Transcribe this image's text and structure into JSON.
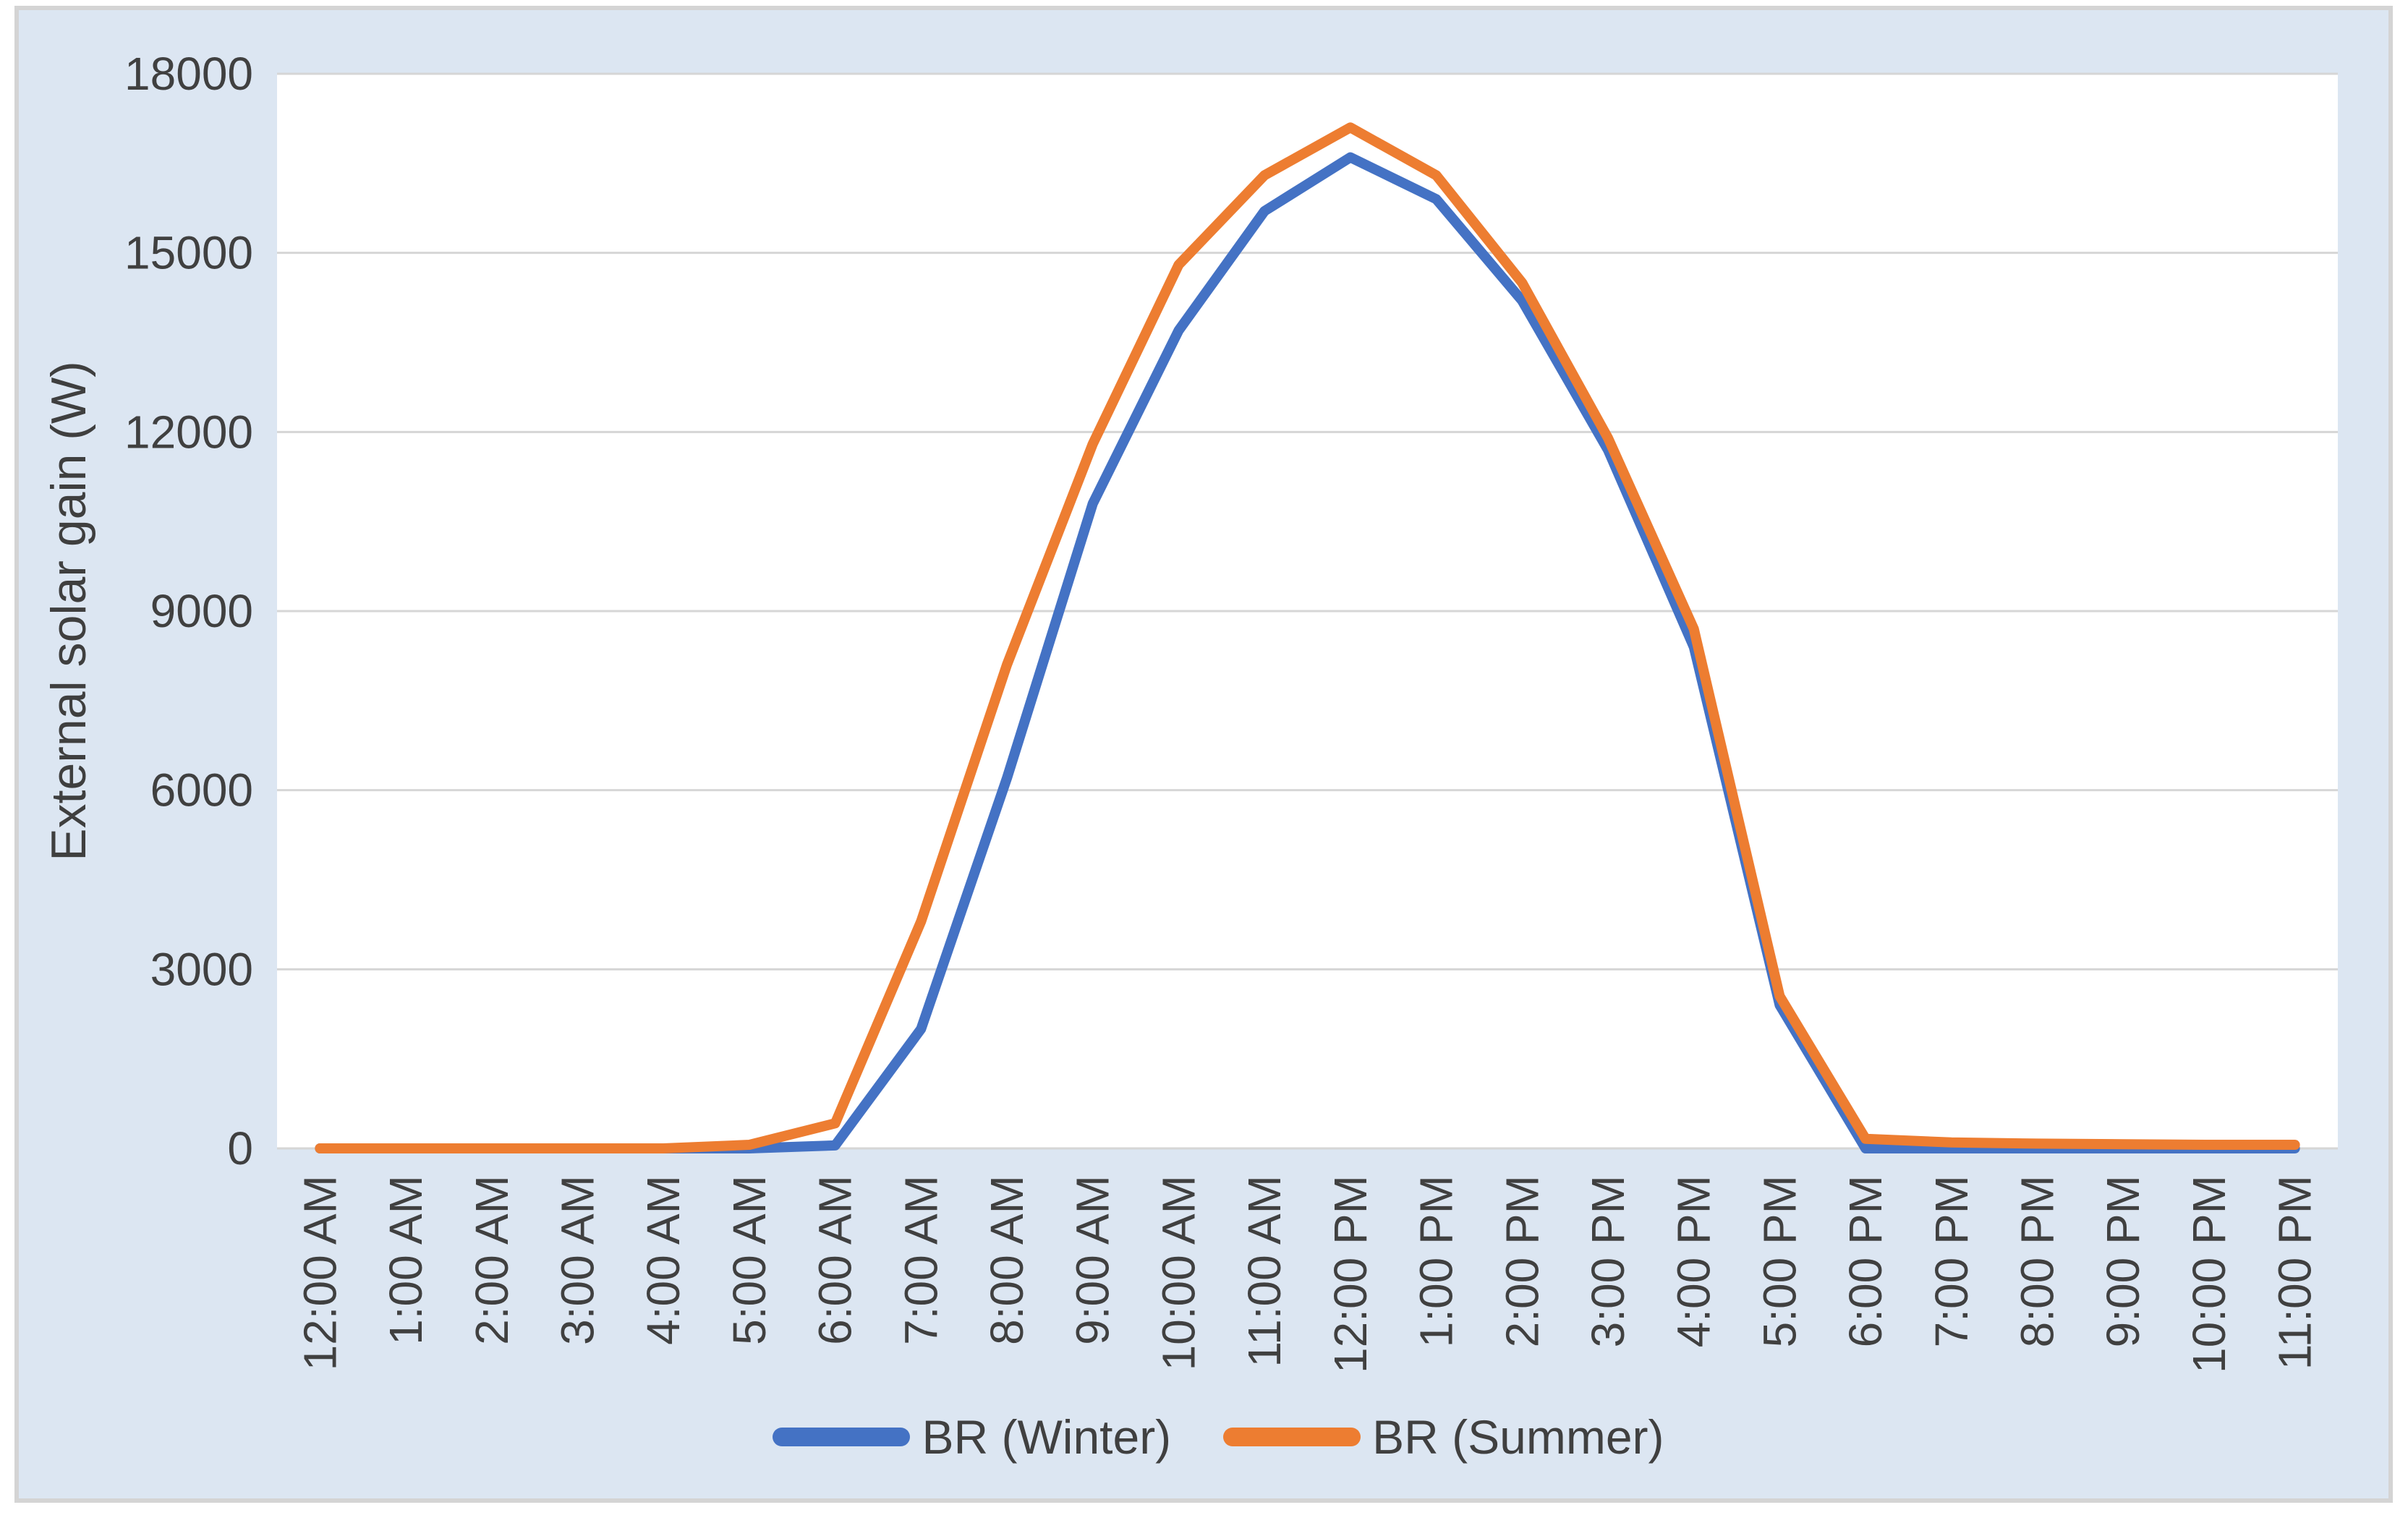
{
  "colors": {
    "chart_bg": "#DCE6F2",
    "plot_bg": "#FFFFFF",
    "gridline": "#D6D6D6",
    "frame_border": "#D4D4D4",
    "text": "#404040",
    "winter": "#4472C4",
    "summer": "#ED7D31"
  },
  "chart_data": {
    "type": "line",
    "title": "",
    "xlabel": "",
    "ylabel": "External solar gain (W)",
    "ylim": [
      0,
      18000
    ],
    "yticks": [
      0,
      3000,
      6000,
      9000,
      12000,
      15000,
      18000
    ],
    "grid": true,
    "legend_position": "bottom-center",
    "categories": [
      "12:00 AM",
      "1:00 AM",
      "2:00 AM",
      "3:00 AM",
      "4:00 AM",
      "5:00 AM",
      "6:00 AM",
      "7:00 AM",
      "8:00 AM",
      "9:00 AM",
      "10:00 AM",
      "11:00 AM",
      "12:00 PM",
      "1:00 PM",
      "2:00 PM",
      "3:00 PM",
      "4:00 PM",
      "5:00 PM",
      "6:00 PM",
      "7:00 PM",
      "8:00 PM",
      "9:00 PM",
      "10:00 PM",
      "11:00 PM"
    ],
    "series": [
      {
        "name": "BR (Winter)",
        "color": "#4472C4",
        "values": [
          0,
          0,
          0,
          0,
          0,
          0,
          50,
          2000,
          6200,
          10800,
          13700,
          15700,
          16600,
          15900,
          14200,
          11700,
          8400,
          2400,
          0,
          0,
          0,
          0,
          0,
          0
        ]
      },
      {
        "name": "BR (Summer)",
        "color": "#ED7D31",
        "values": [
          0,
          0,
          0,
          0,
          0,
          60,
          420,
          3800,
          8100,
          11800,
          14800,
          16300,
          17100,
          16300,
          14500,
          11900,
          8700,
          2550,
          160,
          100,
          80,
          70,
          60,
          60
        ]
      }
    ]
  }
}
